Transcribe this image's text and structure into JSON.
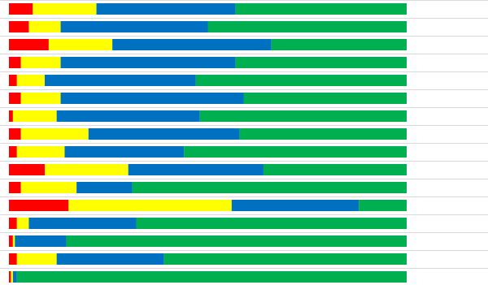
{
  "chart_data": {
    "type": "bar",
    "orientation": "horizontal",
    "stacked": true,
    "percent_stacked": true,
    "title": "",
    "xlabel": "",
    "ylabel": "",
    "xlim": [
      0,
      100
    ],
    "grid": true,
    "legend": "none",
    "categories": [
      "",
      "",
      "",
      "",
      "",
      "",
      "",
      "",
      "",
      "",
      "",
      "",
      "",
      "",
      "",
      ""
    ],
    "series": [
      {
        "color": "#ff0000",
        "values": [
          6,
          5,
          10,
          3,
          2,
          3,
          1,
          3,
          2,
          9,
          3,
          15,
          2,
          1,
          2,
          0.5
        ]
      },
      {
        "color": "#ffff00",
        "values": [
          16,
          8,
          16,
          10,
          7,
          10,
          11,
          17,
          12,
          21,
          14,
          41,
          3,
          0.5,
          10,
          0.5
        ]
      },
      {
        "color": "#0070c0",
        "values": [
          35,
          37,
          40,
          44,
          38,
          46,
          36,
          38,
          30,
          34,
          14,
          32,
          27,
          13,
          27,
          1
        ]
      },
      {
        "color": "#00b050",
        "values": [
          43,
          50,
          34,
          43,
          53,
          41,
          52,
          42,
          56,
          36,
          69,
          12,
          68,
          86,
          61,
          98
        ]
      }
    ]
  }
}
